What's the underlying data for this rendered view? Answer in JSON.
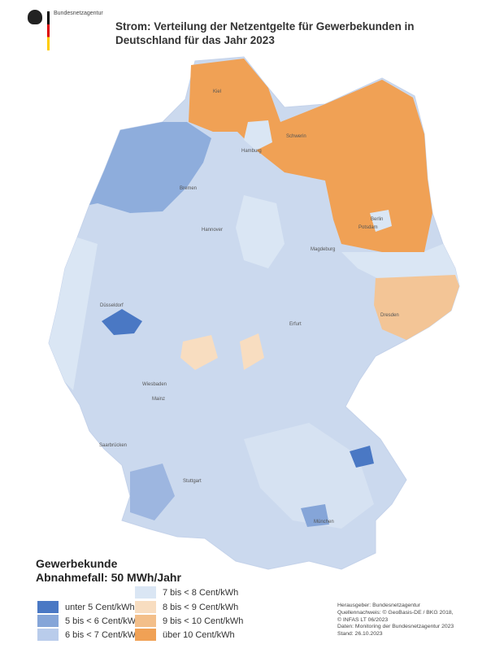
{
  "header": {
    "organization": "Bundesnetzagentur",
    "title_line1": "Strom: Verteilung der Netzentgelte für Gewerbekunden in",
    "title_line2": "Deutschland für das Jahr 2023"
  },
  "cities": [
    "Kiel",
    "Schwerin",
    "Hamburg",
    "Bremen",
    "Hannover",
    "Berlin",
    "Potsdam",
    "Magdeburg",
    "Düsseldorf",
    "Erfurt",
    "Dresden",
    "Wiesbaden",
    "Mainz",
    "Saarbrücken",
    "Stuttgart",
    "München"
  ],
  "legend": {
    "title_line1": "Gewerbekunde",
    "title_line2": "Abnahmefall: 50 MWh/Jahr",
    "items": [
      {
        "label": "unter 5 Cent/kWh",
        "color": "#4a78c4"
      },
      {
        "label": "5 bis < 6 Cent/kWh",
        "color": "#85a5d8"
      },
      {
        "label": "6 bis < 7 Cent/kWh",
        "color": "#b9cceb"
      },
      {
        "label": "7 bis < 8 Cent/kWh",
        "color": "#dae6f4"
      },
      {
        "label": "8 bis < 9 Cent/kWh",
        "color": "#f8ddc0"
      },
      {
        "label": "9 bis < 10 Cent/kWh",
        "color": "#f3bf8a"
      },
      {
        "label": "über 10 Cent/kWh",
        "color": "#f0a155"
      }
    ]
  },
  "source": {
    "line1": "Herausgeber: Bundesnetzagentur",
    "line2": "Quellennachweis: © GeoBasis-DE / BKG 2018,",
    "line3": "© INFAS LT 06/2023",
    "line4": "Daten: Monitoring der Bundesnetzagentur 2023",
    "line5": "Stand: 26.10.2023"
  }
}
